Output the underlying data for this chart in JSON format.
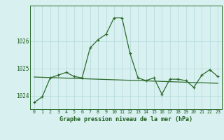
{
  "x": [
    0,
    1,
    2,
    3,
    4,
    5,
    6,
    7,
    8,
    9,
    10,
    11,
    12,
    13,
    14,
    15,
    16,
    17,
    18,
    19,
    20,
    21,
    22,
    23
  ],
  "y_main": [
    1023.75,
    1023.95,
    1024.65,
    1024.75,
    1024.85,
    1024.7,
    1024.65,
    1025.75,
    1026.05,
    1026.25,
    1026.85,
    1026.85,
    1025.55,
    1024.65,
    1024.55,
    1024.65,
    1024.05,
    1024.6,
    1024.6,
    1024.55,
    1024.3,
    1024.75,
    1024.95,
    1024.7
  ],
  "y_trend": [
    1024.68,
    1024.67,
    1024.66,
    1024.65,
    1024.64,
    1024.63,
    1024.62,
    1024.61,
    1024.6,
    1024.59,
    1024.58,
    1024.57,
    1024.56,
    1024.55,
    1024.54,
    1024.53,
    1024.52,
    1024.51,
    1024.5,
    1024.49,
    1024.48,
    1024.47,
    1024.46,
    1024.45
  ],
  "bg_color": "#d8f0f0",
  "line_color": "#2d6a2d",
  "grid_color": "#b0d8d8",
  "text_color": "#1a5c1a",
  "xlabel": "Graphe pression niveau de la mer (hPa)",
  "yticks": [
    1024,
    1025,
    1026
  ],
  "ylim": [
    1023.5,
    1027.3
  ],
  "xlim": [
    -0.5,
    23.5
  ]
}
